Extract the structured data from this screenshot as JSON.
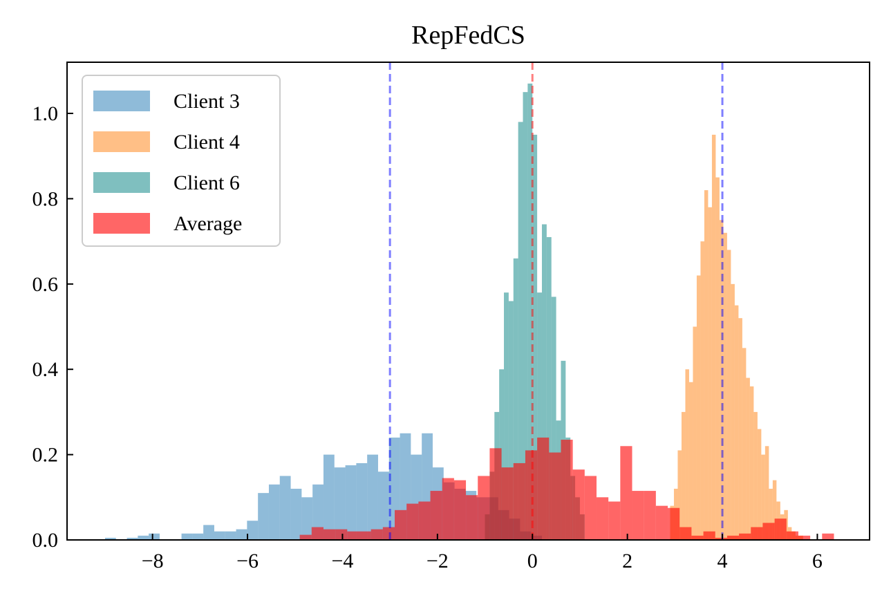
{
  "chart_data": {
    "type": "histogram",
    "title": "RepFedCS",
    "xlabel": "",
    "ylabel": "",
    "xlim": [
      -9.8,
      7.1
    ],
    "ylim": [
      0,
      1.12
    ],
    "xticks": [
      -8,
      -6,
      -4,
      -2,
      0,
      2,
      4,
      6
    ],
    "xtick_labels": [
      "−8",
      "−6",
      "−4",
      "−2",
      "0",
      "2",
      "4",
      "6"
    ],
    "yticks": [
      0.0,
      0.2,
      0.4,
      0.6,
      0.8,
      1.0
    ],
    "ytick_labels": [
      "0.0",
      "0.2",
      "0.4",
      "0.6",
      "0.8",
      "1.0"
    ],
    "grid": false,
    "legend_position": "top-left",
    "colors": {
      "client3": "#1f77b4",
      "client4": "#ff7f0e",
      "client6": "#008080",
      "average": "#ff0000",
      "client_mean_line": "#0000ff",
      "average_mean_line": "#ff0000"
    },
    "vlines": [
      {
        "x": -3.0,
        "color": "#0000ff"
      },
      {
        "x": 0.0,
        "color": "#ff0000"
      },
      {
        "x": 4.0,
        "color": "#0000ff"
      }
    ],
    "series": [
      {
        "name": "Client 3",
        "color": "#1f77b4",
        "opacity": 0.5,
        "bin_edges": [
          -9.0,
          -8.77,
          -8.54,
          -8.31,
          -8.08,
          -7.85,
          -7.62,
          -7.39,
          -7.16,
          -6.93,
          -6.7,
          -6.47,
          -6.24,
          -6.01,
          -5.78,
          -5.55,
          -5.32,
          -5.09,
          -4.86,
          -4.63,
          -4.4,
          -4.17,
          -3.94,
          -3.71,
          -3.48,
          -3.25,
          -3.02,
          -2.79,
          -2.56,
          -2.33,
          -2.1,
          -1.87,
          -1.64,
          -1.41,
          -1.18,
          -0.95,
          -0.72,
          -0.49,
          -0.26,
          -0.03,
          0.2
        ],
        "values": [
          0.005,
          0.0,
          0.005,
          0.01,
          0.015,
          0.0,
          0.0,
          0.015,
          0.015,
          0.035,
          0.02,
          0.02,
          0.025,
          0.045,
          0.11,
          0.13,
          0.15,
          0.12,
          0.1,
          0.13,
          0.2,
          0.17,
          0.175,
          0.18,
          0.2,
          0.16,
          0.24,
          0.25,
          0.2,
          0.25,
          0.17,
          0.135,
          0.12,
          0.115,
          0.1,
          0.1,
          0.07,
          0.05,
          0.02,
          0.01
        ]
      },
      {
        "name": "Client 4",
        "color": "#ff7f0e",
        "opacity": 0.5,
        "bin_edges": [
          2.9,
          2.98,
          3.06,
          3.14,
          3.22,
          3.3,
          3.38,
          3.46,
          3.54,
          3.62,
          3.7,
          3.78,
          3.86,
          3.94,
          4.02,
          4.1,
          4.18,
          4.26,
          4.34,
          4.42,
          4.5,
          4.58,
          4.66,
          4.74,
          4.82,
          4.9,
          4.98,
          5.06,
          5.14,
          5.22,
          5.3,
          5.38,
          5.46,
          5.54,
          5.62,
          5.7
        ],
        "values": [
          0.08,
          0.12,
          0.21,
          0.3,
          0.4,
          0.37,
          0.5,
          0.62,
          0.7,
          0.82,
          0.78,
          0.95,
          0.85,
          0.75,
          0.72,
          0.68,
          0.6,
          0.55,
          0.52,
          0.45,
          0.38,
          0.36,
          0.3,
          0.26,
          0.2,
          0.22,
          0.12,
          0.14,
          0.09,
          0.06,
          0.07,
          0.03,
          0.02,
          0.01,
          0.01
        ]
      },
      {
        "name": "Client 6",
        "color": "#008080",
        "opacity": 0.5,
        "bin_edges": [
          -1.0,
          -0.9,
          -0.8,
          -0.7,
          -0.6,
          -0.5,
          -0.4,
          -0.3,
          -0.2,
          -0.1,
          0.0,
          0.1,
          0.2,
          0.3,
          0.4,
          0.5,
          0.6,
          0.7,
          0.8,
          0.9,
          1.0,
          1.1
        ],
        "values": [
          0.06,
          0.16,
          0.3,
          0.4,
          0.58,
          0.56,
          0.66,
          0.98,
          1.05,
          1.07,
          0.95,
          0.58,
          0.74,
          0.71,
          0.57,
          0.28,
          0.42,
          0.24,
          0.15,
          0.1,
          0.06
        ]
      },
      {
        "name": "Average",
        "color": "#ff0000",
        "opacity": 0.6,
        "bin_edges": [
          -4.9,
          -4.65,
          -4.4,
          -4.15,
          -3.9,
          -3.65,
          -3.4,
          -3.15,
          -2.9,
          -2.65,
          -2.4,
          -2.15,
          -1.9,
          -1.65,
          -1.4,
          -1.15,
          -0.9,
          -0.65,
          -0.4,
          -0.15,
          0.1,
          0.35,
          0.6,
          0.85,
          1.1,
          1.35,
          1.6,
          1.85,
          2.1,
          2.35,
          2.6,
          2.85,
          3.1,
          3.35,
          3.6,
          3.85,
          4.1,
          4.35,
          4.6,
          4.85,
          5.1,
          5.35,
          5.6,
          5.85,
          6.1,
          6.35
        ],
        "values": [
          0.012,
          0.03,
          0.025,
          0.025,
          0.02,
          0.02,
          0.025,
          0.03,
          0.07,
          0.085,
          0.09,
          0.115,
          0.145,
          0.14,
          0.105,
          0.15,
          0.215,
          0.17,
          0.18,
          0.21,
          0.24,
          0.205,
          0.235,
          0.165,
          0.15,
          0.1,
          0.09,
          0.22,
          0.115,
          0.115,
          0.08,
          0.075,
          0.03,
          0.01,
          0.02,
          0.005,
          0.01,
          0.015,
          0.03,
          0.04,
          0.05,
          0.02,
          0.01,
          0.0,
          0.015
        ]
      }
    ]
  }
}
